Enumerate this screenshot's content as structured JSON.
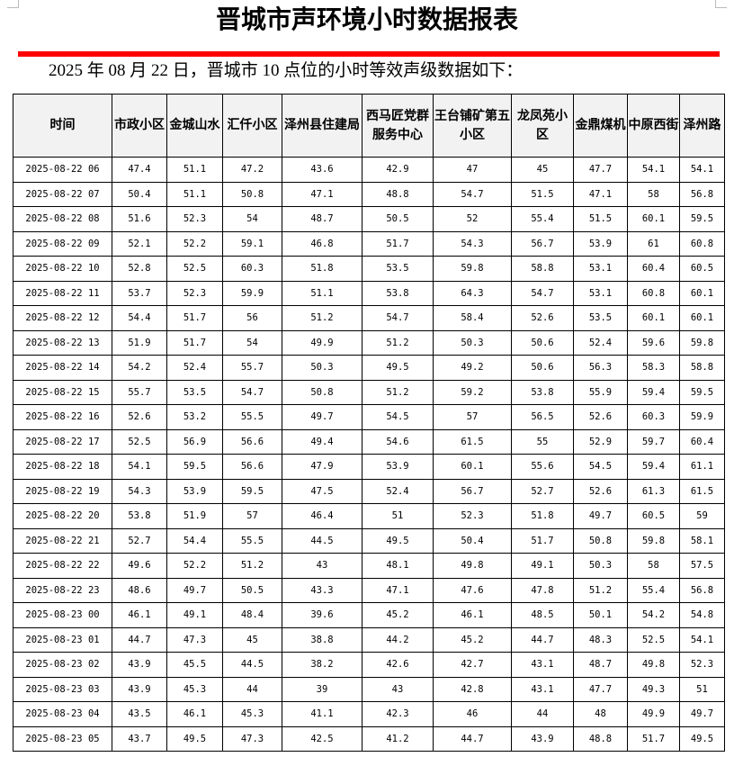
{
  "title": "晋城市声环境小时数据报表",
  "subtitle": "2025 年 08 月 22 日，晋城市 10 点位的小时等效声级数据如下：",
  "accent_color": "#ff0000",
  "table": {
    "headers": [
      "时间",
      "市政小区",
      "金城山水",
      "汇仟小区",
      "泽州县住建局",
      "西马匠党群服务中心",
      "王台铺矿第五小区",
      "龙凤苑小区",
      "金鼎煤机",
      "中原西街",
      "泽州路"
    ],
    "rows": [
      [
        "2025-08-22 06",
        "47.4",
        "51.1",
        "47.2",
        "43.6",
        "42.9",
        "47",
        "45",
        "47.7",
        "54.1",
        "54.1"
      ],
      [
        "2025-08-22 07",
        "50.4",
        "51.1",
        "50.8",
        "47.1",
        "48.8",
        "54.7",
        "51.5",
        "47.1",
        "58",
        "56.8"
      ],
      [
        "2025-08-22 08",
        "51.6",
        "52.3",
        "54",
        "48.7",
        "50.5",
        "52",
        "55.4",
        "51.5",
        "60.1",
        "59.5"
      ],
      [
        "2025-08-22 09",
        "52.1",
        "52.2",
        "59.1",
        "46.8",
        "51.7",
        "54.3",
        "56.7",
        "53.9",
        "61",
        "60.8"
      ],
      [
        "2025-08-22 10",
        "52.8",
        "52.5",
        "60.3",
        "51.8",
        "53.5",
        "59.8",
        "58.8",
        "53.1",
        "60.4",
        "60.5"
      ],
      [
        "2025-08-22 11",
        "53.7",
        "52.3",
        "59.9",
        "51.1",
        "53.8",
        "64.3",
        "54.7",
        "53.1",
        "60.8",
        "60.1"
      ],
      [
        "2025-08-22 12",
        "54.4",
        "51.7",
        "56",
        "51.2",
        "54.7",
        "58.4",
        "52.6",
        "53.5",
        "60.1",
        "60.1"
      ],
      [
        "2025-08-22 13",
        "51.9",
        "51.7",
        "54",
        "49.9",
        "51.2",
        "50.3",
        "50.6",
        "52.4",
        "59.6",
        "59.8"
      ],
      [
        "2025-08-22 14",
        "54.2",
        "52.4",
        "55.7",
        "50.3",
        "49.5",
        "49.2",
        "50.6",
        "56.3",
        "58.3",
        "58.8"
      ],
      [
        "2025-08-22 15",
        "55.7",
        "53.5",
        "54.7",
        "50.8",
        "51.2",
        "59.2",
        "53.8",
        "55.9",
        "59.4",
        "59.5"
      ],
      [
        "2025-08-22 16",
        "52.6",
        "53.2",
        "55.5",
        "49.7",
        "54.5",
        "57",
        "56.5",
        "52.6",
        "60.3",
        "59.9"
      ],
      [
        "2025-08-22 17",
        "52.5",
        "56.9",
        "56.6",
        "49.4",
        "54.6",
        "61.5",
        "55",
        "52.9",
        "59.7",
        "60.4"
      ],
      [
        "2025-08-22 18",
        "54.1",
        "59.5",
        "56.6",
        "47.9",
        "53.9",
        "60.1",
        "55.6",
        "54.5",
        "59.4",
        "61.1"
      ],
      [
        "2025-08-22 19",
        "54.3",
        "53.9",
        "59.5",
        "47.5",
        "52.4",
        "56.7",
        "52.7",
        "52.6",
        "61.3",
        "61.5"
      ],
      [
        "2025-08-22 20",
        "53.8",
        "51.9",
        "57",
        "46.4",
        "51",
        "52.3",
        "51.8",
        "49.7",
        "60.5",
        "59"
      ],
      [
        "2025-08-22 21",
        "52.7",
        "54.4",
        "55.5",
        "44.5",
        "49.5",
        "50.4",
        "51.7",
        "50.8",
        "59.8",
        "58.1"
      ],
      [
        "2025-08-22 22",
        "49.6",
        "52.2",
        "51.2",
        "43",
        "48.1",
        "49.8",
        "49.1",
        "50.3",
        "58",
        "57.5"
      ],
      [
        "2025-08-22 23",
        "48.6",
        "49.7",
        "50.5",
        "43.3",
        "47.1",
        "47.6",
        "47.8",
        "51.2",
        "55.4",
        "56.8"
      ],
      [
        "2025-08-23 00",
        "46.1",
        "49.1",
        "48.4",
        "39.6",
        "45.2",
        "46.1",
        "48.5",
        "50.1",
        "54.2",
        "54.8"
      ],
      [
        "2025-08-23 01",
        "44.7",
        "47.3",
        "45",
        "38.8",
        "44.2",
        "45.2",
        "44.7",
        "48.3",
        "52.5",
        "54.1"
      ],
      [
        "2025-08-23 02",
        "43.9",
        "45.5",
        "44.5",
        "38.2",
        "42.6",
        "42.7",
        "43.1",
        "48.7",
        "49.8",
        "52.3"
      ],
      [
        "2025-08-23 03",
        "43.9",
        "45.3",
        "44",
        "39",
        "43",
        "42.8",
        "43.1",
        "47.7",
        "49.3",
        "51"
      ],
      [
        "2025-08-23 04",
        "43.5",
        "46.1",
        "45.3",
        "41.1",
        "42.3",
        "46",
        "44",
        "48",
        "49.9",
        "49.7"
      ],
      [
        "2025-08-23 05",
        "43.7",
        "49.5",
        "47.3",
        "42.5",
        "41.2",
        "44.7",
        "43.9",
        "48.8",
        "51.7",
        "49.5"
      ]
    ]
  }
}
